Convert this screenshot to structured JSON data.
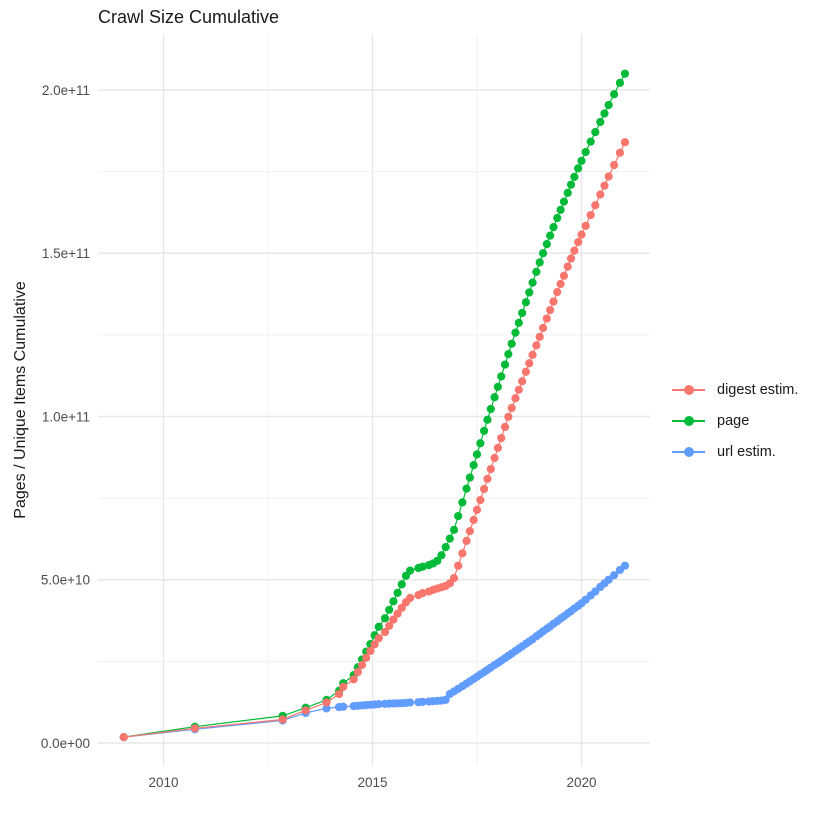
{
  "chart_data": {
    "type": "line",
    "marker": "point",
    "title": "Crawl Size Cumulative",
    "xlabel": "",
    "ylabel": "Pages / Unique Items Cumulative",
    "legend_position": "right",
    "grid": true,
    "background": "#ffffff",
    "gridline_major_color": "#e8e8e8",
    "gridline_minor_color": "#f1f1f1",
    "tick_label_color": "#4d4d4d",
    "x_ticks": [
      {
        "value": 2010,
        "label": "2010"
      },
      {
        "value": 2015,
        "label": "2015"
      },
      {
        "value": 2020,
        "label": "2020"
      }
    ],
    "x_minor_ticks": [
      2012.5,
      2017.5
    ],
    "y_ticks": [
      {
        "value": 0,
        "label": "0.0e+00"
      },
      {
        "value": 50,
        "label": "5.0e+10"
      },
      {
        "value": 100,
        "label": "1.0e+11"
      },
      {
        "value": 150,
        "label": "1.5e+11"
      },
      {
        "value": 200,
        "label": "2.0e+11"
      }
    ],
    "y_minor_ticks": [
      25,
      75,
      125,
      175
    ],
    "y_unit_multiplier": 1000000000.0,
    "xlim": [
      2008.43,
      2021.64
    ],
    "ylim_billions": [
      -7,
      216.8
    ],
    "x_years": [
      2009.05,
      2010.75,
      2012.85,
      2013.4,
      2013.9,
      2014.2,
      2014.3,
      2014.55,
      2014.65,
      2014.75,
      2014.85,
      2014.95,
      2015.05,
      2015.15,
      2015.3,
      2015.4,
      2015.5,
      2015.6,
      2015.7,
      2015.8,
      2015.9,
      2016.1,
      2016.2,
      2016.35,
      2016.45,
      2016.55,
      2016.65,
      2016.75,
      2016.85,
      2016.95,
      2017.05,
      2017.15,
      2017.25,
      2017.33,
      2017.42,
      2017.5,
      2017.58,
      2017.67,
      2017.75,
      2017.83,
      2017.92,
      2018.0,
      2018.08,
      2018.17,
      2018.25,
      2018.33,
      2018.42,
      2018.5,
      2018.58,
      2018.67,
      2018.75,
      2018.83,
      2018.92,
      2019.0,
      2019.08,
      2019.17,
      2019.25,
      2019.33,
      2019.42,
      2019.5,
      2019.58,
      2019.67,
      2019.75,
      2019.83,
      2019.92,
      2020.0,
      2020.1,
      2020.22,
      2020.33,
      2020.45,
      2020.55,
      2020.65,
      2020.78,
      2020.92,
      2021.04
    ],
    "series": [
      {
        "name": "digest estim.",
        "color": "#F8766D",
        "values_billions": [
          1.8,
          4.5,
          7.2,
          10.0,
          12.4,
          15.0,
          17.2,
          19.5,
          21.7,
          23.9,
          26.1,
          28.2,
          30.2,
          32.1,
          34.0,
          35.9,
          37.8,
          39.6,
          41.4,
          43.1,
          44.4,
          45.3,
          45.9,
          46.4,
          46.9,
          47.3,
          47.7,
          48.1,
          48.9,
          50.5,
          54.3,
          58.1,
          61.9,
          64.9,
          68.3,
          71.4,
          74.4,
          77.8,
          80.9,
          83.9,
          87.3,
          90.4,
          93.4,
          96.8,
          99.9,
          102.6,
          105.6,
          108.2,
          110.8,
          113.7,
          116.3,
          118.9,
          121.8,
          124.4,
          127.1,
          130.0,
          132.6,
          135.2,
          138.1,
          140.6,
          143.1,
          145.9,
          148.4,
          150.8,
          153.4,
          155.7,
          158.4,
          161.7,
          164.7,
          168.0,
          170.7,
          173.5,
          177.0,
          180.8,
          184.0
        ]
      },
      {
        "name": "page",
        "color": "#00BA38",
        "values_billions": [
          1.8,
          5.0,
          8.3,
          10.8,
          13.2,
          16.0,
          18.3,
          20.8,
          23.2,
          25.6,
          28.0,
          30.3,
          33.0,
          35.6,
          38.2,
          40.8,
          43.4,
          46.0,
          48.6,
          51.2,
          52.8,
          53.6,
          54.0,
          54.5,
          55.0,
          55.8,
          57.5,
          60.0,
          62.6,
          65.3,
          69.5,
          73.7,
          77.9,
          81.3,
          85.1,
          88.4,
          91.8,
          95.6,
          99.0,
          102.3,
          105.9,
          109.1,
          112.3,
          115.9,
          119.1,
          122.3,
          125.7,
          128.7,
          131.7,
          135.0,
          138.0,
          141.0,
          144.3,
          147.2,
          150.0,
          152.8,
          155.4,
          158.0,
          160.8,
          163.3,
          165.8,
          168.5,
          171.0,
          173.4,
          176.0,
          178.3,
          181.0,
          184.2,
          187.1,
          190.2,
          192.8,
          195.4,
          198.7,
          202.2,
          205.0
        ]
      },
      {
        "name": "url estim.",
        "color": "#619CFF",
        "values_billions": [
          1.8,
          4.2,
          6.9,
          9.2,
          10.6,
          11.0,
          11.1,
          11.3,
          11.4,
          11.5,
          11.6,
          11.7,
          11.8,
          11.9,
          12.0,
          12.05,
          12.1,
          12.15,
          12.2,
          12.3,
          12.4,
          12.5,
          12.6,
          12.7,
          12.8,
          12.9,
          13.0,
          13.2,
          15.0,
          15.8,
          16.6,
          17.4,
          18.2,
          18.9,
          19.6,
          20.3,
          21.0,
          21.7,
          22.4,
          23.1,
          23.9,
          24.5,
          25.2,
          26.0,
          26.7,
          27.4,
          28.2,
          28.9,
          29.6,
          30.4,
          31.1,
          31.8,
          32.7,
          33.4,
          34.2,
          35.0,
          35.7,
          36.5,
          37.3,
          38.1,
          38.8,
          39.7,
          40.4,
          41.2,
          42.0,
          42.8,
          43.9,
          45.2,
          46.4,
          47.8,
          48.9,
          50.0,
          51.4,
          53.0,
          54.3
        ]
      }
    ]
  }
}
